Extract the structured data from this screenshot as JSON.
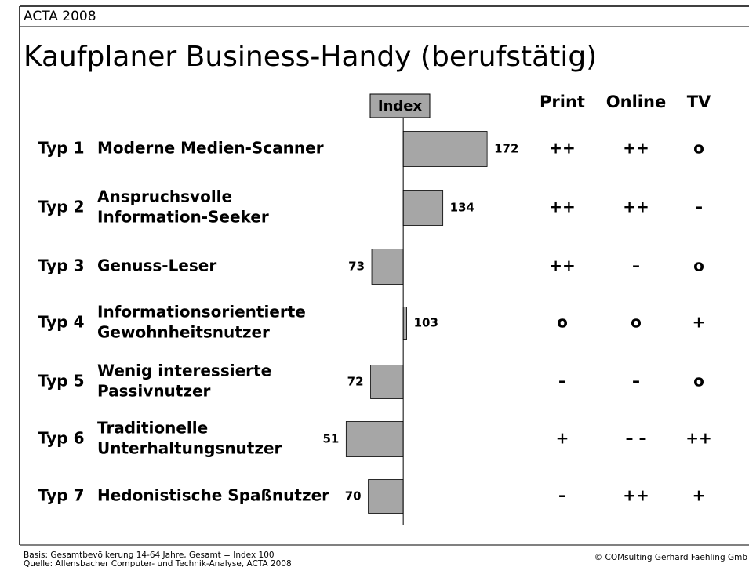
{
  "header": "ACTA 2008",
  "chart_data": {
    "type": "bar",
    "orientation": "horizontal",
    "title": "Kaufplaner Business-Handy (berufstätig)",
    "axis_label": "Index",
    "categories": [
      "Typ 1",
      "Typ 2",
      "Typ 3",
      "Typ 4",
      "Typ 5",
      "Typ 6",
      "Typ 7"
    ],
    "segment_names": [
      [
        "Moderne Medien-Scanner"
      ],
      [
        "Anspruchsvolle",
        "Information-Seeker"
      ],
      [
        "Genuss-Leser"
      ],
      [
        "Informationsorientierte",
        "Gewohnheitsnutzer"
      ],
      [
        "Wenig interessierte",
        "Passivnutzer"
      ],
      [
        "Traditionelle",
        "Unterhaltungsnutzer"
      ],
      [
        "Hedonistische Spaßnutzer"
      ]
    ],
    "values": [
      172,
      134,
      73,
      103,
      72,
      51,
      70
    ],
    "baseline": 100,
    "xlim": [
      40,
      180
    ],
    "color": "#a6a6a6"
  },
  "media": {
    "headers": [
      "Print",
      "Online",
      "TV"
    ],
    "ratings": [
      [
        "++",
        "++",
        "o"
      ],
      [
        "++",
        "++",
        "–"
      ],
      [
        "++",
        "–",
        "o"
      ],
      [
        "o",
        "o",
        "+"
      ],
      [
        "–",
        "–",
        "o"
      ],
      [
        "+",
        "– –",
        "++"
      ],
      [
        "–",
        "++",
        "+"
      ]
    ]
  },
  "footer": {
    "notes": [
      "Basis: Gesamtbevölkerung 14-64 Jahre, Gesamt = Index 100",
      "Quelle: Allensbacher Computer- und Technik-Analyse, ACTA 2008"
    ],
    "copyright": "© COMsulting Gerhard Faehling Gmb"
  }
}
